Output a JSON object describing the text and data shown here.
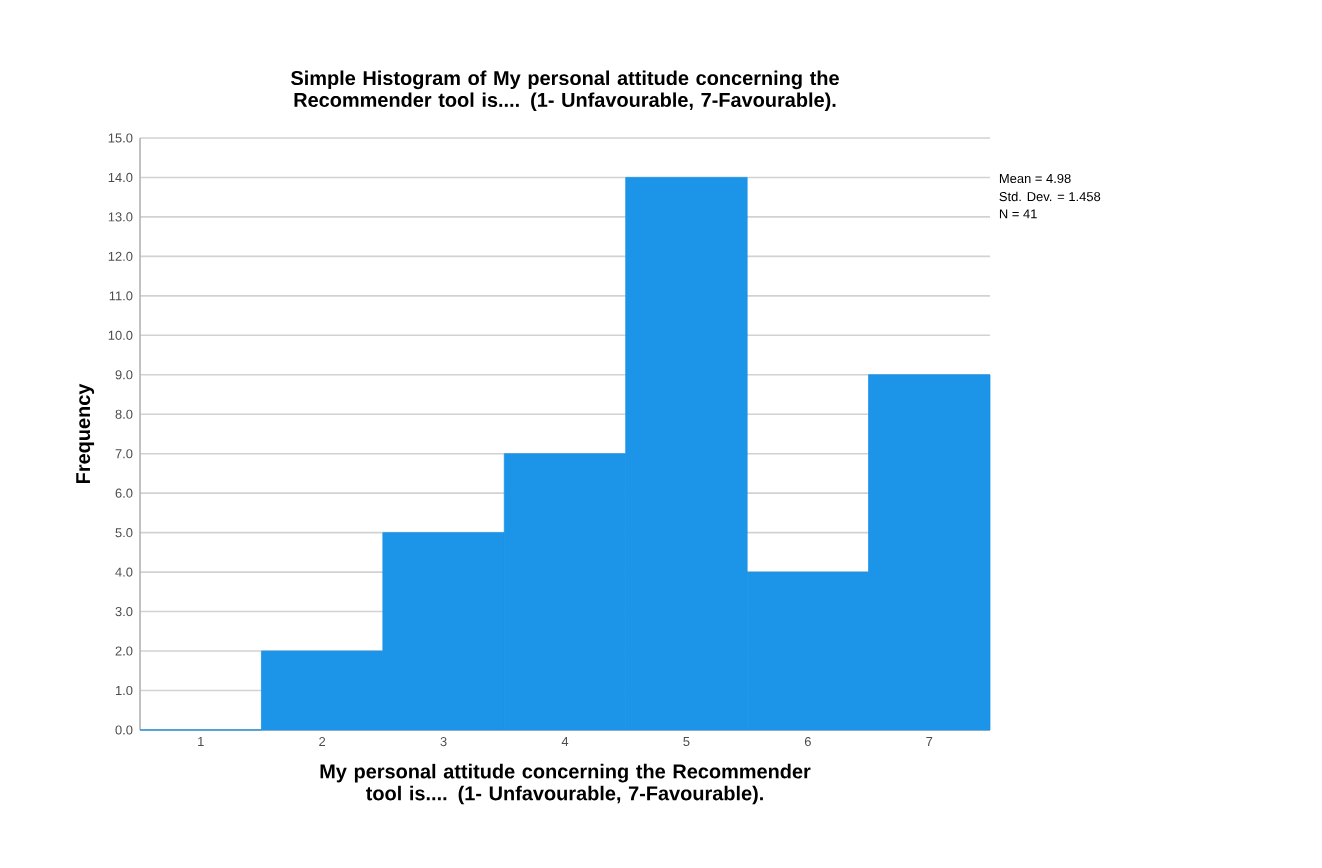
{
  "chart_data": {
    "type": "histogram",
    "title": "Simple Histogram of My personal attitude concerning the Recommender tool is.... (1- Unfavourable, 7-Favourable).",
    "xlabel": "My personal attitude concerning the Recommender tool is.... (1- Unfavourable, 7-Favourable).",
    "ylabel": "Frequency",
    "bins": [
      0.5,
      1.5,
      2.5,
      3.5,
      4.5,
      5.5,
      6.5,
      7.5
    ],
    "values": [
      0,
      2,
      5,
      7,
      14,
      4,
      9
    ],
    "color": "#1c94e8",
    "xlim": [
      0.5,
      7.5
    ],
    "xticks": [
      1,
      2,
      3,
      4,
      5,
      6,
      7
    ],
    "ylim": [
      0,
      15
    ],
    "yticks": [
      {
        "value": 0,
        "label": "0.0"
      },
      {
        "value": 1,
        "label": "1.0"
      },
      {
        "value": 2,
        "label": "2.0"
      },
      {
        "value": 3,
        "label": "3.0"
      },
      {
        "value": 4,
        "label": "4.0"
      },
      {
        "value": 5,
        "label": "5.0"
      },
      {
        "value": 6,
        "label": "6.0"
      },
      {
        "value": 7,
        "label": "7.0"
      },
      {
        "value": 8,
        "label": "8.0"
      },
      {
        "value": 9,
        "label": "9.0"
      },
      {
        "value": 10,
        "label": "10.0"
      },
      {
        "value": 11,
        "label": "11.0"
      },
      {
        "value": 12,
        "label": "12.0"
      },
      {
        "value": 13,
        "label": "13.0"
      },
      {
        "value": 14,
        "label": "14.0"
      },
      {
        "value": 15,
        "label": "15.0"
      }
    ],
    "grid": "y",
    "annotations": [
      "Mean = 4.98",
      "Std. Dev. = 1.458",
      "N = 41"
    ]
  }
}
